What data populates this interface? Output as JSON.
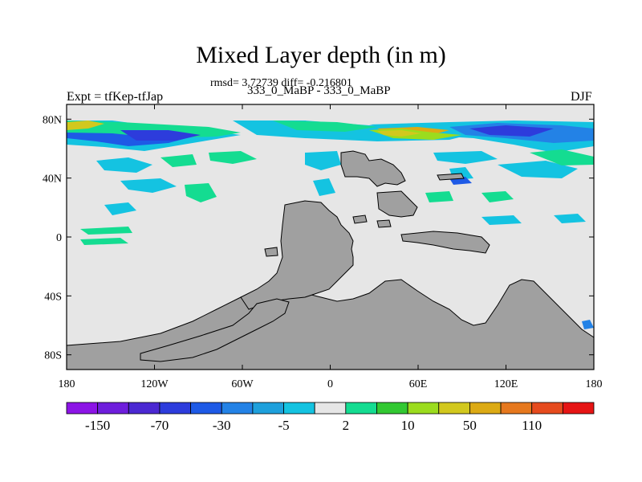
{
  "title": "Mixed Layer depth (in m)",
  "stats_line": "rmsd= 3.72739 diff= -0.216801",
  "experiments_line": "333_0_MaBP - 333_0_MaBP",
  "left_label": "Expt = tfKep-tfJap",
  "right_label": "DJF",
  "colors": {
    "ocean_background": "#e6e6e6",
    "land": "#a0a0a0",
    "land_outline": "#000000"
  },
  "map": {
    "projection": "cylindrical equidistant",
    "lon_range": [
      -180,
      180
    ],
    "lat_range": [
      -90,
      90
    ],
    "lat_ticks": [
      {
        "value": 80,
        "label": "80N"
      },
      {
        "value": 40,
        "label": "40N"
      },
      {
        "value": 0,
        "label": "0"
      },
      {
        "value": -40,
        "label": "40S"
      },
      {
        "value": -80,
        "label": "80S"
      }
    ],
    "lon_ticks": [
      {
        "value": -180,
        "label": "180"
      },
      {
        "value": -120,
        "label": "120W"
      },
      {
        "value": -60,
        "label": "60W"
      },
      {
        "value": 0,
        "label": "0"
      },
      {
        "value": 60,
        "label": "60E"
      },
      {
        "value": 120,
        "label": "120E"
      },
      {
        "value": 180,
        "label": "180"
      }
    ]
  },
  "colorbar": {
    "colors": [
      "#8c14e6",
      "#6e1edc",
      "#4b28d2",
      "#2d3cdc",
      "#1e5ae6",
      "#2382e6",
      "#1ea0dc",
      "#14c3e1",
      "#e6e6e6",
      "#14dc91",
      "#32c832",
      "#9bdc1e",
      "#d2c81e",
      "#dcaa14",
      "#e6781e",
      "#e64b1e",
      "#e61414"
    ],
    "labels": [
      "-150",
      "-70",
      "-30",
      "-5",
      "2",
      "10",
      "50",
      "110"
    ]
  }
}
